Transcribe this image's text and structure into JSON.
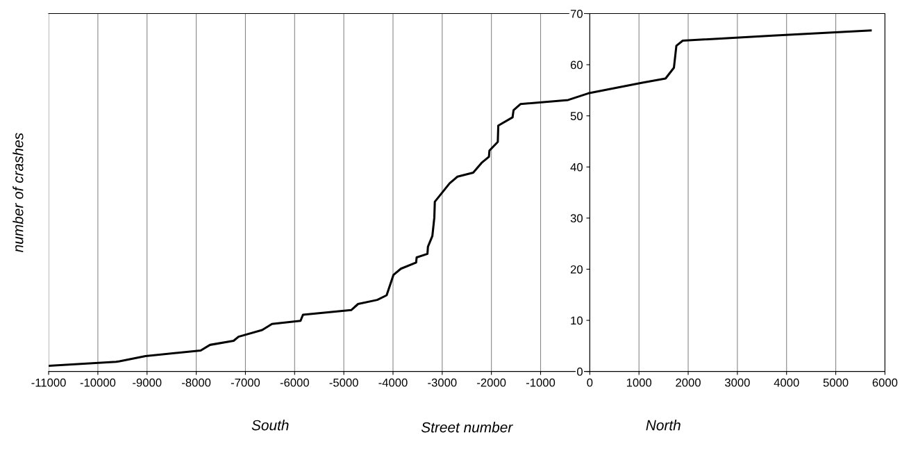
{
  "chart_data": {
    "type": "line",
    "xlabel": "Street number",
    "ylabel": "number of crashes",
    "annotations": [
      "South",
      "North"
    ],
    "series": [
      {
        "color": "#000000",
        "x": [
          -10990,
          -9630,
          -9560,
          -9030,
          -7910,
          -7720,
          -7240,
          -7140,
          -6660,
          -6460,
          -5880,
          -5830,
          -4850,
          -4710,
          -4320,
          -4130,
          -3990,
          -3840,
          -3530,
          -3520,
          -3300,
          -3290,
          -3200,
          -3160,
          -3150,
          -2850,
          -2690,
          -2370,
          -2200,
          -2050,
          -2040,
          -1870,
          -1860,
          -1570,
          -1550,
          -1410,
          -440,
          -30,
          1070,
          1540,
          1710,
          1760,
          1890,
          3720,
          5710
        ],
        "values": [
          1.1,
          1.9,
          2.0,
          3.0,
          4.1,
          5.2,
          6.0,
          6.8,
          8.1,
          9.3,
          9.9,
          11.1,
          12.0,
          13.2,
          14.0,
          14.9,
          18.9,
          20.1,
          21.3,
          22.3,
          23.0,
          24.4,
          26.5,
          30.1,
          33.2,
          36.8,
          38.1,
          38.9,
          40.8,
          42.0,
          43.2,
          44.9,
          48.1,
          49.7,
          51.1,
          52.3,
          53.1,
          54.4,
          56.5,
          57.3,
          59.4,
          63.7,
          64.7,
          65.7,
          66.7
        ]
      }
    ],
    "xlim": [
      -11000,
      6000
    ],
    "xticks": [
      -11000,
      -10000,
      -9000,
      -8000,
      -7000,
      -6000,
      -5000,
      -4000,
      -3000,
      -2000,
      -1000,
      0,
      1000,
      2000,
      3000,
      4000,
      5000,
      6000
    ],
    "ylim": [
      0,
      70
    ],
    "yticks": [
      0,
      10,
      20,
      30,
      40,
      50,
      60,
      70
    ],
    "grid": "x",
    "marker": "none",
    "line_style": "solid"
  }
}
